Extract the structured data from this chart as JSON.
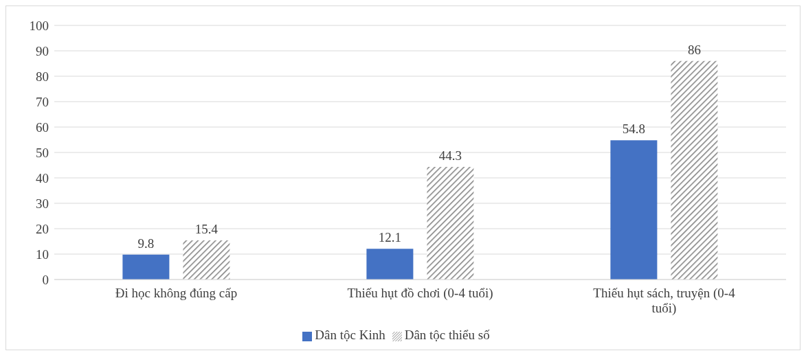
{
  "chart_data": {
    "type": "bar",
    "categories": [
      "Đi học không đúng cấp",
      "Thiếu hụt đồ chơi (0-4 tuổi)",
      "Thiếu hụt sách, truyện (0-4 tuổi)"
    ],
    "series": [
      {
        "name": "Dân tộc Kinh",
        "color": "#4472c4",
        "values": [
          9.8,
          12.1,
          54.8
        ]
      },
      {
        "name": "Dân tộc thiểu số",
        "color": "#7f7f7f",
        "values": [
          15.4,
          44.3,
          86
        ]
      }
    ],
    "ylim": [
      0,
      100
    ],
    "yticks": [
      0,
      10,
      20,
      30,
      40,
      50,
      60,
      70,
      80,
      90,
      100
    ],
    "grid": "y",
    "legend": "bottom",
    "data_labels": true
  }
}
